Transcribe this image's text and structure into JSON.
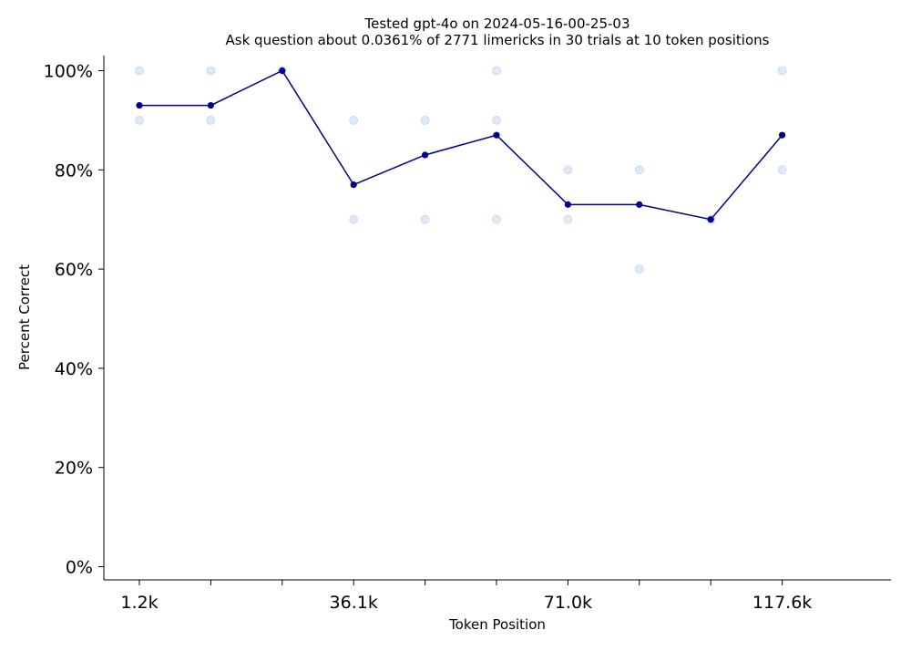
{
  "chart_data": {
    "type": "line",
    "title": "Tested gpt-4o on 2024-05-16-00-25-03",
    "subtitle": "Ask question about 0.0361% of 2771 limericks in 30 trials at 10 token positions",
    "xlabel": "Token Position",
    "ylabel": "Percent Correct",
    "ylim": [
      0,
      100
    ],
    "y_ticks": [
      0,
      20,
      40,
      60,
      80,
      100
    ],
    "y_tick_labels": [
      "0%",
      "20%",
      "40%",
      "60%",
      "80%",
      "100%"
    ],
    "x_positions": [
      1,
      2,
      3,
      4,
      5,
      6,
      7,
      8,
      9,
      10
    ],
    "x_tick_labels": [
      "1.2k",
      "",
      "",
      "36.1k",
      "",
      "",
      "71.0k",
      "",
      "",
      "117.6k"
    ],
    "series": [
      {
        "values": [
          93,
          93,
          100,
          77,
          83,
          87,
          73,
          73,
          70,
          87
        ]
      }
    ],
    "trials": [
      {
        "x": 1,
        "values": [
          100,
          90
        ]
      },
      {
        "x": 2,
        "values": [
          100,
          90
        ]
      },
      {
        "x": 3,
        "values": [
          100
        ]
      },
      {
        "x": 4,
        "values": [
          90,
          70
        ]
      },
      {
        "x": 5,
        "values": [
          90,
          70
        ]
      },
      {
        "x": 6,
        "values": [
          100,
          90,
          70
        ]
      },
      {
        "x": 7,
        "values": [
          80,
          70
        ]
      },
      {
        "x": 8,
        "values": [
          80,
          60
        ]
      },
      {
        "x": 9,
        "values": [
          70
        ]
      },
      {
        "x": 10,
        "values": [
          100,
          80
        ]
      }
    ],
    "grid": false,
    "colors": {
      "line": "#00008b",
      "trial_fill": "#c6d9f1",
      "trial_stroke": "#a9c2e6"
    }
  }
}
